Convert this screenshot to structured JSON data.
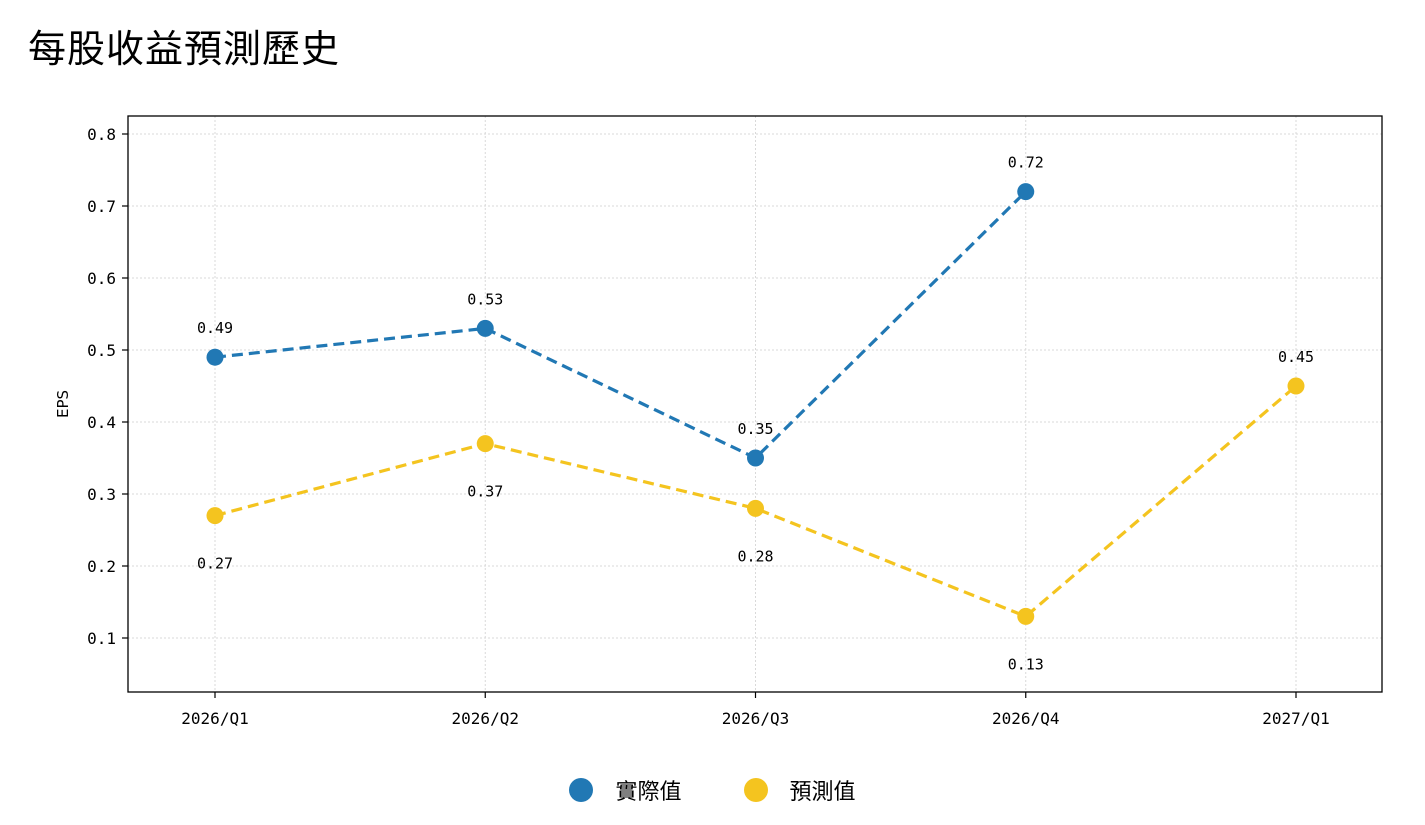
{
  "title": "每股收益預測歷史",
  "chart_data": {
    "type": "line",
    "categories": [
      "2026/Q1",
      "2026/Q2",
      "2026/Q3",
      "2026/Q4",
      "2027/Q1"
    ],
    "ylabel": "EPS",
    "xlabel": "",
    "ylim": [
      0.025,
      0.825
    ],
    "yticks": [
      "0.1",
      "0.2",
      "0.3",
      "0.4",
      "0.5",
      "0.6",
      "0.7",
      "0.8"
    ],
    "grid": true,
    "legend_position": "bottom-center",
    "series": [
      {
        "name": "實際值",
        "color": "#2178b4",
        "style": "dashed",
        "values": [
          0.49,
          0.53,
          0.35,
          0.72,
          null
        ],
        "labels": [
          "0.49",
          "0.53",
          "0.35",
          "0.72",
          null
        ],
        "label_side": [
          "above",
          "above",
          "above",
          "above",
          null
        ]
      },
      {
        "name": "預測值",
        "color": "#f4c41f",
        "style": "dashed",
        "values": [
          0.27,
          0.37,
          0.28,
          0.13,
          0.45
        ],
        "labels": [
          "0.27",
          "0.37",
          "0.28",
          "0.13",
          "0.45"
        ],
        "label_side": [
          "below",
          "below",
          "below",
          "below",
          "above"
        ]
      }
    ]
  }
}
